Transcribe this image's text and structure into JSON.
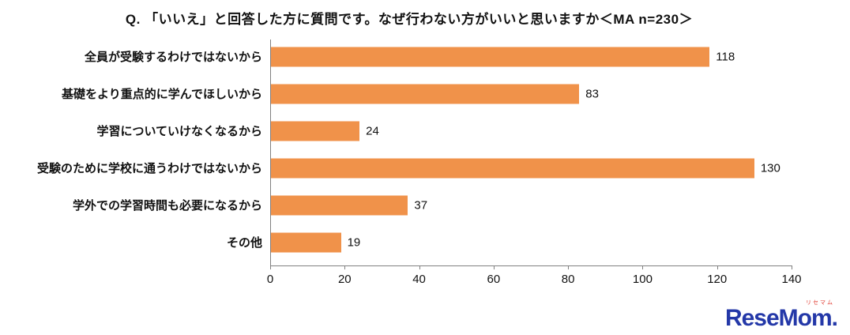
{
  "title": "Q. 「いいえ」と回答した方に質問です。なぜ行わない方がいいと思いますか＜MA n=230＞",
  "chart_data": {
    "type": "bar",
    "orientation": "horizontal",
    "categories": [
      "全員が受験するわけではないから",
      "基礎をより重点的に学んでほしいから",
      "学習についていけなくなるから",
      "受験のために学校に通うわけではないから",
      "学外での学習時間も必要になるから",
      "その他"
    ],
    "values": [
      118,
      83,
      24,
      130,
      37,
      19
    ],
    "title": "Q. 「いいえ」と回答した方に質問です。なぜ行わない方がいいと思いますか＜MA n=230＞",
    "xlabel": "",
    "ylabel": "",
    "xlim": [
      0,
      140
    ],
    "xticks": [
      0,
      20,
      40,
      60,
      80,
      100,
      120,
      140
    ],
    "bar_color": "#F0924A",
    "grid": false,
    "legend": "none"
  },
  "logo": {
    "sub": "リセマム",
    "text": "ReseMom."
  }
}
